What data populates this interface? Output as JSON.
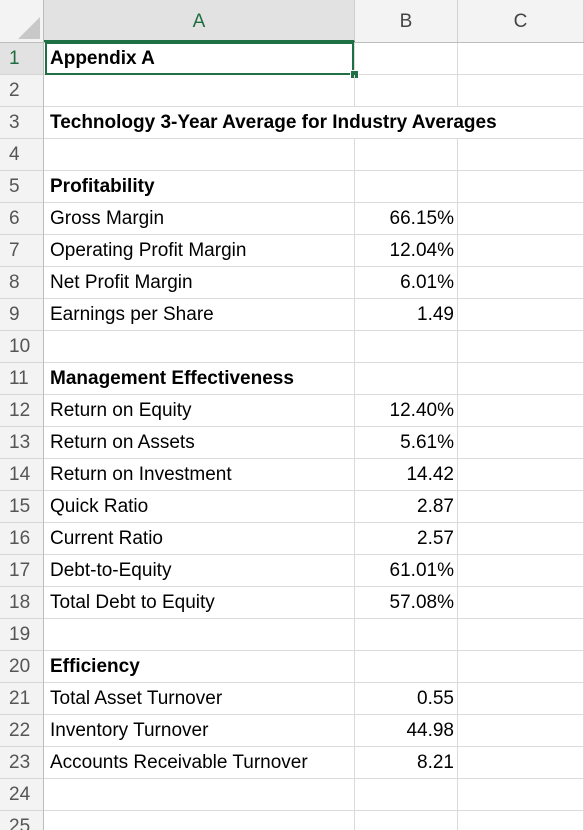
{
  "columns": [
    "A",
    "B",
    "C"
  ],
  "active_column": "A",
  "rows": [
    {
      "num": "1",
      "a": "Appendix A",
      "b": "",
      "bold": true
    },
    {
      "num": "2",
      "a": "",
      "b": "",
      "bold": false
    },
    {
      "num": "3",
      "a": "Technology  3-Year Average for Industry Averages",
      "b": "",
      "bold": true
    },
    {
      "num": "4",
      "a": "",
      "b": "",
      "bold": false
    },
    {
      "num": "5",
      "a": "Profitability",
      "b": "",
      "bold": true
    },
    {
      "num": "6",
      "a": "Gross Margin",
      "b": "66.15%",
      "bold": false
    },
    {
      "num": "7",
      "a": "Operating Profit Margin",
      "b": "12.04%",
      "bold": false
    },
    {
      "num": "8",
      "a": "Net Profit Margin",
      "b": "6.01%",
      "bold": false
    },
    {
      "num": "9",
      "a": "Earnings per Share",
      "b": "1.49",
      "bold": false
    },
    {
      "num": "10",
      "a": "",
      "b": "",
      "bold": false
    },
    {
      "num": "11",
      "a": "Management Effectiveness",
      "b": "",
      "bold": true
    },
    {
      "num": "12",
      "a": "Return on Equity",
      "b": "12.40%",
      "bold": false
    },
    {
      "num": "13",
      "a": "Return on Assets",
      "b": "5.61%",
      "bold": false
    },
    {
      "num": "14",
      "a": "Return on Investment",
      "b": "14.42",
      "bold": false
    },
    {
      "num": "15",
      "a": "Quick Ratio",
      "b": "2.87",
      "bold": false
    },
    {
      "num": "16",
      "a": "Current Ratio",
      "b": "2.57",
      "bold": false
    },
    {
      "num": "17",
      "a": "Debt-to-Equity",
      "b": "61.01%",
      "bold": false
    },
    {
      "num": "18",
      "a": "Total Debt to Equity",
      "b": "57.08%",
      "bold": false
    },
    {
      "num": "19",
      "a": "",
      "b": "",
      "bold": false
    },
    {
      "num": "20",
      "a": "Efficiency",
      "b": "",
      "bold": true
    },
    {
      "num": "21",
      "a": "Total Asset Turnover",
      "b": "0.55",
      "bold": false
    },
    {
      "num": "22",
      "a": "Inventory Turnover",
      "b": "44.98",
      "bold": false
    },
    {
      "num": "23",
      "a": "Accounts Receivable Turnover",
      "b": "8.21",
      "bold": false
    },
    {
      "num": "24",
      "a": "",
      "b": "",
      "bold": false
    },
    {
      "num": "25",
      "a": "",
      "b": "",
      "bold": false
    }
  ],
  "selected_cell": "A1",
  "colors": {
    "selection": "#1f7145",
    "header_bg": "#f3f3f3",
    "gridline": "#dadada"
  }
}
